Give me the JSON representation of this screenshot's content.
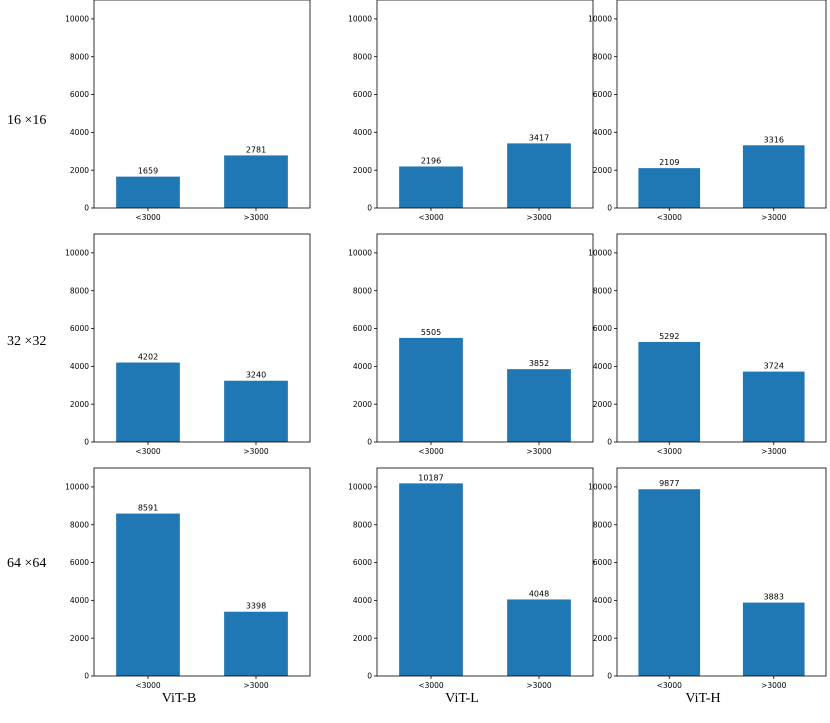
{
  "row_labels": [
    "16 ×16",
    "32 ×32",
    "64 ×64"
  ],
  "column_labels": [
    "ViT-B",
    "ViT-L",
    "ViT-H"
  ],
  "colors": {
    "bar": "#1f77b4",
    "axis": "#000000"
  },
  "chart_data": [
    {
      "type": "bar",
      "categories": [
        "<3000",
        ">3000"
      ],
      "values": [
        1659,
        2781
      ],
      "ylim": [
        0,
        11000
      ],
      "yticks": [
        0,
        2000,
        4000,
        6000,
        8000,
        10000
      ],
      "grid": false
    },
    {
      "type": "bar",
      "categories": [
        "<3000",
        ">3000"
      ],
      "values": [
        2196,
        3417
      ],
      "ylim": [
        0,
        11000
      ],
      "yticks": [
        0,
        2000,
        4000,
        6000,
        8000,
        10000
      ],
      "grid": false
    },
    {
      "type": "bar",
      "categories": [
        "<3000",
        ">3000"
      ],
      "values": [
        2109,
        3316
      ],
      "ylim": [
        0,
        11000
      ],
      "yticks": [
        0,
        2000,
        4000,
        6000,
        8000,
        10000
      ],
      "grid": false
    },
    {
      "type": "bar",
      "categories": [
        "<3000",
        ">3000"
      ],
      "values": [
        4202,
        3240
      ],
      "ylim": [
        0,
        11000
      ],
      "yticks": [
        0,
        2000,
        4000,
        6000,
        8000,
        10000
      ],
      "grid": false
    },
    {
      "type": "bar",
      "categories": [
        "<3000",
        ">3000"
      ],
      "values": [
        5505,
        3852
      ],
      "ylim": [
        0,
        11000
      ],
      "yticks": [
        0,
        2000,
        4000,
        6000,
        8000,
        10000
      ],
      "grid": false
    },
    {
      "type": "bar",
      "categories": [
        "<3000",
        ">3000"
      ],
      "values": [
        5292,
        3724
      ],
      "ylim": [
        0,
        11000
      ],
      "yticks": [
        0,
        2000,
        4000,
        6000,
        8000,
        10000
      ],
      "grid": false
    },
    {
      "type": "bar",
      "categories": [
        "<3000",
        ">3000"
      ],
      "values": [
        8591,
        3398
      ],
      "ylim": [
        0,
        11000
      ],
      "yticks": [
        0,
        2000,
        4000,
        6000,
        8000,
        10000
      ],
      "grid": false
    },
    {
      "type": "bar",
      "categories": [
        "<3000",
        ">3000"
      ],
      "values": [
        10187,
        4048
      ],
      "ylim": [
        0,
        11000
      ],
      "yticks": [
        0,
        2000,
        4000,
        6000,
        8000,
        10000
      ],
      "grid": false
    },
    {
      "type": "bar",
      "categories": [
        "<3000",
        ">3000"
      ],
      "values": [
        9877,
        3883
      ],
      "ylim": [
        0,
        11000
      ],
      "yticks": [
        0,
        2000,
        4000,
        6000,
        8000,
        10000
      ],
      "grid": false
    }
  ]
}
